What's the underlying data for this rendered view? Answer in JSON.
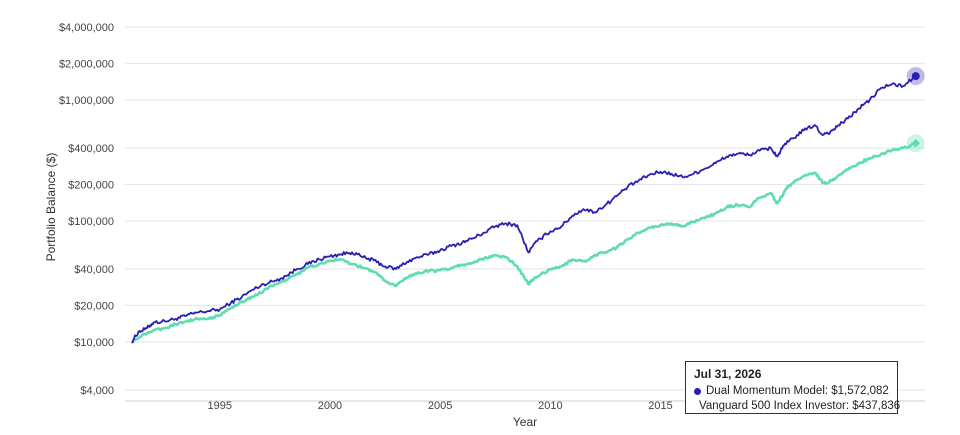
{
  "chart_data": {
    "type": "line",
    "title": "",
    "xlabel": "Year",
    "ylabel": "Portfolio Balance ($)",
    "yscale": "log",
    "ylim": [
      4000,
      4000000
    ],
    "xlim": [
      1990.7,
      2027.0
    ],
    "y_ticks": [
      {
        "value": 4000,
        "label": "$4,000"
      },
      {
        "value": 10000,
        "label": "$10,000"
      },
      {
        "value": 20000,
        "label": "$20,000"
      },
      {
        "value": 40000,
        "label": "$40,000"
      },
      {
        "value": 100000,
        "label": "$100,000"
      },
      {
        "value": 200000,
        "label": "$200,000"
      },
      {
        "value": 400000,
        "label": "$400,000"
      },
      {
        "value": 1000000,
        "label": "$1,000,000"
      },
      {
        "value": 2000000,
        "label": "$2,000,000"
      },
      {
        "value": 4000000,
        "label": "$4,000,000"
      }
    ],
    "x_ticks": [
      {
        "value": 1995,
        "label": "1995"
      },
      {
        "value": 2000,
        "label": "2000"
      },
      {
        "value": 2005,
        "label": "2005"
      },
      {
        "value": 2010,
        "label": "2010"
      },
      {
        "value": 2015,
        "label": "2015"
      }
    ],
    "grid": true,
    "series": [
      {
        "name": "Dual Momentum Model",
        "color": "#2a1fb3",
        "points": [
          [
            1991.0,
            10000
          ],
          [
            1991.3,
            12000
          ],
          [
            1991.7,
            13000
          ],
          [
            1992.0,
            14500
          ],
          [
            1992.5,
            14800
          ],
          [
            1993.0,
            15500
          ],
          [
            1993.5,
            16500
          ],
          [
            1994.0,
            17500
          ],
          [
            1994.5,
            18000
          ],
          [
            1995.0,
            18500
          ],
          [
            1995.5,
            21000
          ],
          [
            1996.0,
            23500
          ],
          [
            1996.5,
            27000
          ],
          [
            1997.0,
            30000
          ],
          [
            1997.5,
            32000
          ],
          [
            1998.0,
            35000
          ],
          [
            1998.5,
            40000
          ],
          [
            1999.0,
            44000
          ],
          [
            1999.5,
            48000
          ],
          [
            2000.0,
            51000
          ],
          [
            2000.5,
            53000
          ],
          [
            2001.0,
            55000
          ],
          [
            2001.5,
            50000
          ],
          [
            2002.0,
            47000
          ],
          [
            2002.5,
            42000
          ],
          [
            2003.0,
            40000
          ],
          [
            2003.5,
            46000
          ],
          [
            2004.0,
            50000
          ],
          [
            2004.5,
            53000
          ],
          [
            2005.0,
            57000
          ],
          [
            2005.5,
            62000
          ],
          [
            2006.0,
            66000
          ],
          [
            2006.5,
            72000
          ],
          [
            2007.0,
            80000
          ],
          [
            2007.5,
            90000
          ],
          [
            2008.0,
            95000
          ],
          [
            2008.5,
            92000
          ],
          [
            2009.0,
            55000
          ],
          [
            2009.4,
            68000
          ],
          [
            2010.0,
            82000
          ],
          [
            2010.5,
            90000
          ],
          [
            2011.0,
            110000
          ],
          [
            2011.5,
            125000
          ],
          [
            2012.0,
            118000
          ],
          [
            2012.5,
            135000
          ],
          [
            2013.0,
            160000
          ],
          [
            2013.5,
            190000
          ],
          [
            2014.0,
            215000
          ],
          [
            2014.5,
            240000
          ],
          [
            2015.0,
            255000
          ],
          [
            2015.5,
            245000
          ],
          [
            2016.0,
            230000
          ],
          [
            2016.5,
            245000
          ],
          [
            2017.0,
            270000
          ],
          [
            2017.5,
            300000
          ],
          [
            2018.0,
            340000
          ],
          [
            2018.5,
            360000
          ],
          [
            2019.0,
            350000
          ],
          [
            2019.5,
            380000
          ],
          [
            2020.0,
            400000
          ],
          [
            2020.3,
            340000
          ],
          [
            2020.6,
            420000
          ],
          [
            2021.0,
            480000
          ],
          [
            2021.5,
            560000
          ],
          [
            2022.0,
            620000
          ],
          [
            2022.3,
            520000
          ],
          [
            2022.7,
            540000
          ],
          [
            2023.0,
            600000
          ],
          [
            2023.5,
            700000
          ],
          [
            2024.0,
            850000
          ],
          [
            2024.5,
            1000000
          ],
          [
            2025.0,
            1250000
          ],
          [
            2025.5,
            1350000
          ],
          [
            2026.0,
            1300000
          ],
          [
            2026.58,
            1572082
          ]
        ]
      },
      {
        "name": "Vanguard 500 Index Investor",
        "color": "#5fdcb0",
        "points": [
          [
            1991.0,
            10000
          ],
          [
            1991.5,
            11500
          ],
          [
            1992.0,
            12500
          ],
          [
            1992.5,
            13000
          ],
          [
            1993.0,
            14000
          ],
          [
            1993.5,
            14800
          ],
          [
            1994.0,
            15500
          ],
          [
            1994.5,
            15500
          ],
          [
            1995.0,
            16500
          ],
          [
            1995.5,
            19000
          ],
          [
            1996.0,
            21500
          ],
          [
            1996.5,
            23500
          ],
          [
            1997.0,
            26500
          ],
          [
            1997.5,
            30000
          ],
          [
            1998.0,
            32500
          ],
          [
            1998.5,
            36000
          ],
          [
            1999.0,
            41000
          ],
          [
            1999.5,
            44000
          ],
          [
            2000.0,
            47000
          ],
          [
            2000.5,
            48000
          ],
          [
            2001.0,
            44000
          ],
          [
            2001.5,
            41000
          ],
          [
            2002.0,
            38000
          ],
          [
            2002.5,
            32000
          ],
          [
            2003.0,
            29000
          ],
          [
            2003.5,
            34000
          ],
          [
            2004.0,
            37500
          ],
          [
            2004.5,
            38500
          ],
          [
            2005.0,
            39000
          ],
          [
            2005.5,
            41000
          ],
          [
            2006.0,
            43000
          ],
          [
            2006.5,
            45000
          ],
          [
            2007.0,
            49000
          ],
          [
            2007.5,
            52000
          ],
          [
            2008.0,
            50000
          ],
          [
            2008.5,
            42000
          ],
          [
            2009.0,
            30000
          ],
          [
            2009.3,
            34000
          ],
          [
            2010.0,
            40000
          ],
          [
            2010.5,
            42000
          ],
          [
            2011.0,
            48000
          ],
          [
            2011.6,
            46000
          ],
          [
            2012.0,
            52000
          ],
          [
            2012.5,
            55000
          ],
          [
            2013.0,
            60000
          ],
          [
            2013.5,
            70000
          ],
          [
            2014.0,
            80000
          ],
          [
            2014.5,
            88000
          ],
          [
            2015.0,
            92000
          ],
          [
            2015.5,
            95000
          ],
          [
            2016.0,
            90000
          ],
          [
            2016.5,
            98000
          ],
          [
            2017.0,
            105000
          ],
          [
            2017.5,
            115000
          ],
          [
            2018.0,
            130000
          ],
          [
            2018.5,
            135000
          ],
          [
            2019.0,
            130000
          ],
          [
            2019.5,
            155000
          ],
          [
            2020.0,
            170000
          ],
          [
            2020.3,
            140000
          ],
          [
            2020.7,
            185000
          ],
          [
            2021.0,
            205000
          ],
          [
            2021.5,
            235000
          ],
          [
            2022.0,
            250000
          ],
          [
            2022.4,
            205000
          ],
          [
            2022.8,
            215000
          ],
          [
            2023.0,
            230000
          ],
          [
            2023.5,
            265000
          ],
          [
            2024.0,
            300000
          ],
          [
            2024.5,
            330000
          ],
          [
            2025.0,
            355000
          ],
          [
            2025.5,
            385000
          ],
          [
            2026.0,
            400000
          ],
          [
            2026.58,
            437836
          ]
        ]
      }
    ],
    "tooltip": {
      "date": "Jul 31, 2026",
      "rows": [
        {
          "label": "Dual Momentum Model: $1,572,082",
          "color": "#2a1fb3"
        },
        {
          "label": "Vanguard 500 Index Investor: $437,836",
          "color": "#5fdcb0"
        }
      ]
    }
  }
}
